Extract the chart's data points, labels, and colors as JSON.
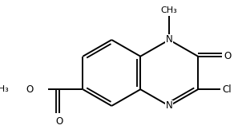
{
  "background_color": "#ffffff",
  "line_color": "#000000",
  "line_width": 1.4,
  "font_size": 8.5,
  "figsize": [
    2.92,
    1.72
  ],
  "dpi": 100,
  "xlim": [
    -3.2,
    3.2
  ],
  "ylim": [
    -2.0,
    2.0
  ]
}
